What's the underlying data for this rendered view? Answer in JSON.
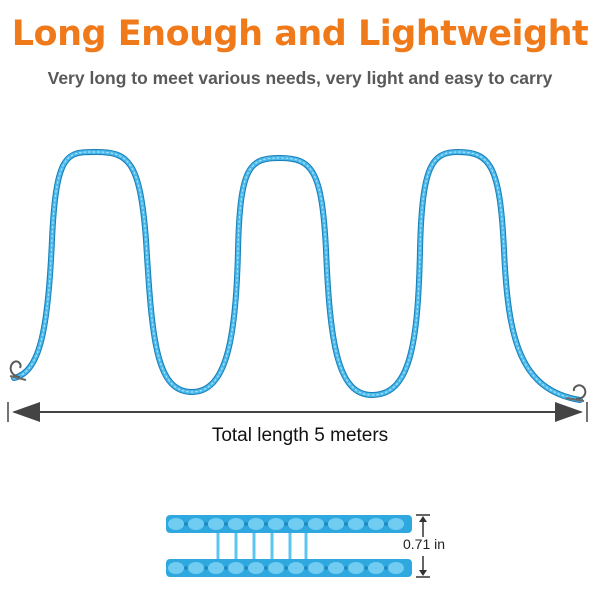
{
  "header": {
    "title": "Long Enough and Lightweight",
    "subtitle": "Very long to meet various needs, very light and easy to carry"
  },
  "measurement": {
    "length_label": "Total length 5 meters",
    "width_label": "0.71 in"
  },
  "colors": {
    "title": "#f07a1a",
    "subtitle": "#595959",
    "rope": "#2fa8e0",
    "rope_light": "#7dd3f5",
    "rope_dark": "#1a7fb8",
    "arrow": "#444444"
  },
  "icons": {
    "rope": "wavy-blue-rope",
    "hook": "metal-hook-icon",
    "length_arrow": "double-arrow-icon",
    "width_arrow": "vertical-dimension-icon"
  }
}
